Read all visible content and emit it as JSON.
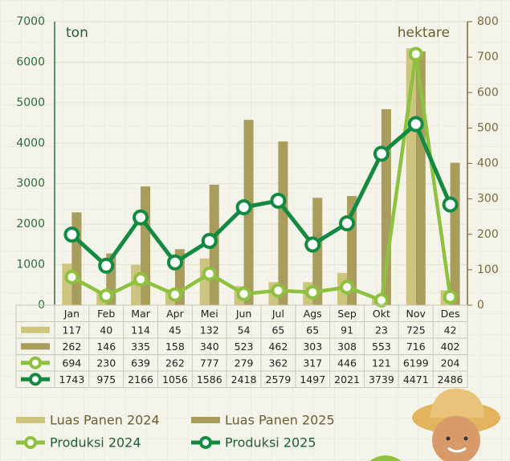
{
  "chart_data": {
    "type": "bar",
    "ylabel": "ton",
    "y2label": "hektare",
    "categories": [
      "Jan",
      "Feb",
      "Mar",
      "Apr",
      "Mei",
      "Jun",
      "Jul",
      "Ags",
      "Sep",
      "Okt",
      "Nov",
      "Des"
    ],
    "ylim": [
      0,
      7000
    ],
    "yticks": [
      0,
      1000,
      2000,
      3000,
      4000,
      5000,
      6000,
      7000
    ],
    "y2lim": [
      0,
      800
    ],
    "y2ticks": [
      0,
      100,
      200,
      300,
      400,
      500,
      600,
      700,
      800
    ],
    "grid": true,
    "series": [
      {
        "name": "Luas Panen 2024",
        "type": "bar",
        "axis": "y2",
        "color": "#cdc57e",
        "values": [
          117,
          40,
          114,
          45,
          132,
          54,
          65,
          65,
          91,
          23,
          725,
          42
        ]
      },
      {
        "name": "Luas Panen 2025",
        "type": "bar",
        "axis": "y2",
        "color": "#a99d5d",
        "values": [
          262,
          146,
          335,
          158,
          340,
          523,
          462,
          303,
          308,
          553,
          716,
          402
        ]
      },
      {
        "name": "Produksi 2024",
        "type": "line",
        "color": "#8dc13f",
        "values": [
          694,
          230,
          639,
          262,
          777,
          279,
          362,
          317,
          446,
          121,
          6199,
          204
        ]
      },
      {
        "name": "Produksi 2025",
        "type": "line",
        "color": "#138a42",
        "values": [
          1743,
          975,
          2166,
          1056,
          1586,
          2418,
          2579,
          1497,
          2021,
          3739,
          4471,
          2486
        ]
      }
    ]
  }
}
